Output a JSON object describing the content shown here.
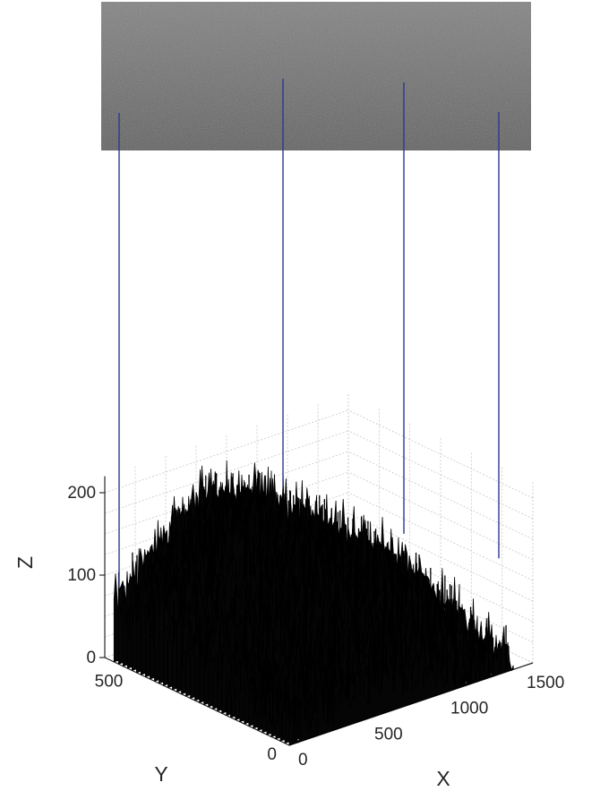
{
  "chart_data": {
    "type": "surface3d",
    "title": "",
    "xlabel": "X",
    "ylabel": "Y",
    "zlabel": "Z",
    "xlim": [
      0,
      1600
    ],
    "ylim": [
      0,
      600
    ],
    "zlim": [
      0,
      220
    ],
    "x_ticks": [
      "0",
      "500",
      "1000",
      "1500"
    ],
    "y_ticks": [
      "0",
      "500"
    ],
    "z_ticks": [
      "0",
      "100",
      "200"
    ],
    "grid": true,
    "surface_color": "#000000",
    "overlay_image": "grayscale ground texture photo",
    "projection_line_color": "#2b3a8c",
    "projection_lines": [
      {
        "x": 60,
        "y": 520,
        "z": 95
      },
      {
        "x": 560,
        "y": 560,
        "z": 180
      },
      {
        "x": 1050,
        "y": 400,
        "z": 120
      },
      {
        "x": 1400,
        "y": 250,
        "z": 95
      }
    ]
  }
}
